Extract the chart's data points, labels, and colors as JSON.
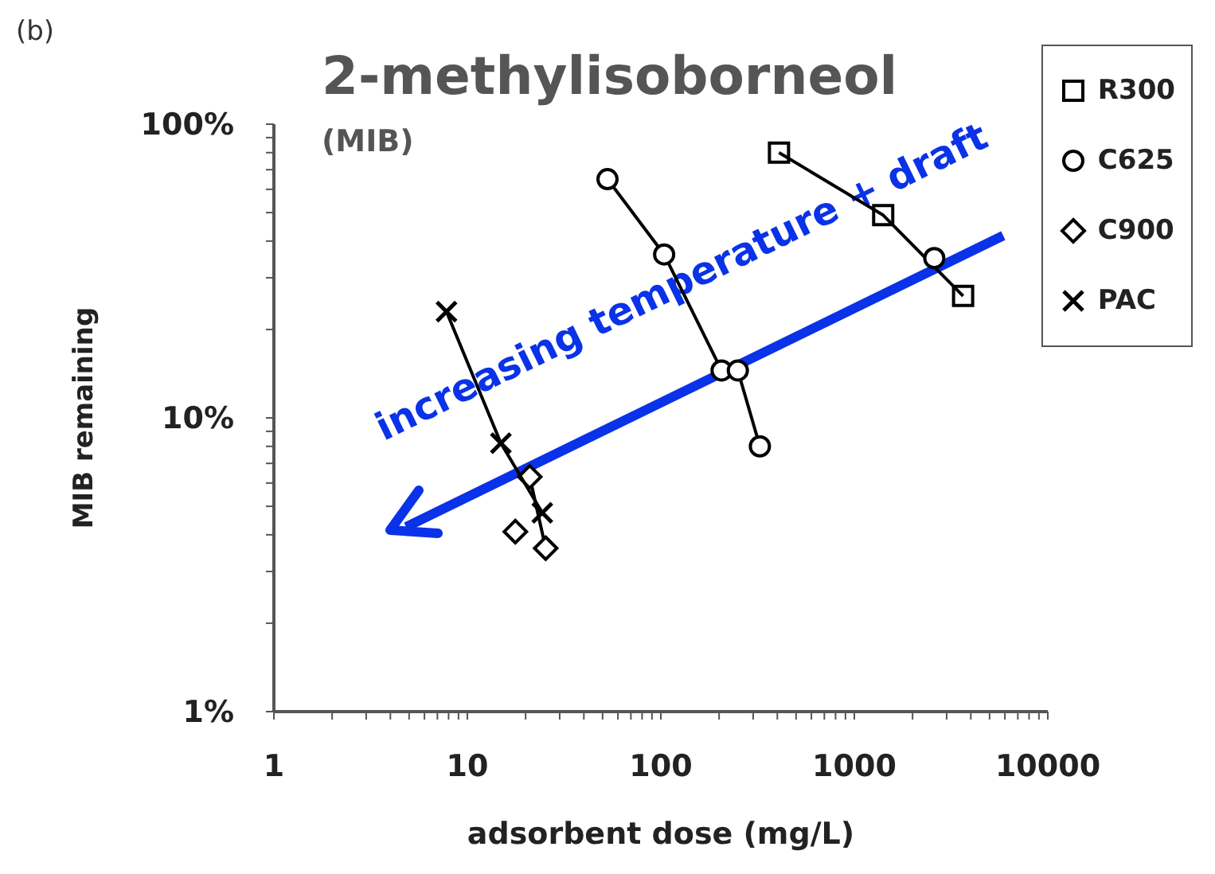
{
  "chart_data": {
    "type": "scatter",
    "title": "2-methylisoborneol",
    "subtitle": "(MIB)",
    "xlabel": "adsorbent dose (mg/L)",
    "ylabel": "MIB remaining",
    "log": "xy",
    "legend": "top right",
    "line_style": "solid",
    "xlim": [
      1,
      10000
    ],
    "ylim": [
      1,
      100
    ],
    "xticks": [
      1,
      {
        "value": 2,
        "label": null
      },
      {
        "value": 3,
        "label": null
      },
      {
        "value": 4,
        "label": null
      },
      {
        "value": 5,
        "label": null
      },
      {
        "value": 6,
        "label": null
      },
      {
        "value": 7,
        "label": null
      },
      {
        "value": 8,
        "label": null
      },
      {
        "value": 9,
        "label": null
      },
      10,
      {
        "value": 20,
        "label": null
      },
      {
        "value": 30,
        "label": null
      },
      {
        "value": 40,
        "label": null
      },
      {
        "value": 50,
        "label": null
      },
      {
        "value": 60,
        "label": null
      },
      {
        "value": 70,
        "label": null
      },
      {
        "value": 80,
        "label": null
      },
      {
        "value": 90,
        "label": null
      },
      100,
      {
        "value": 200,
        "label": null
      },
      {
        "value": 300,
        "label": null
      },
      {
        "value": 400,
        "label": null
      },
      {
        "value": 500,
        "label": null
      },
      {
        "value": 600,
        "label": null
      },
      {
        "value": 700,
        "label": null
      },
      {
        "value": 800,
        "label": null
      },
      {
        "value": 900,
        "label": null
      },
      1000,
      {
        "value": 2000,
        "label": null
      },
      {
        "value": 3000,
        "label": null
      },
      {
        "value": 4000,
        "label": null
      },
      {
        "value": 5000,
        "label": null
      },
      {
        "value": 6000,
        "label": null
      },
      {
        "value": 7000,
        "label": null
      },
      {
        "value": 8000,
        "label": null
      },
      {
        "value": 9000,
        "label": null
      },
      10000
    ],
    "yticks": [
      {
        "value": 1,
        "label": "1%"
      },
      {
        "value": 2,
        "label": null
      },
      {
        "value": 3,
        "label": null
      },
      {
        "value": 4,
        "label": null
      },
      {
        "value": 5,
        "label": null
      },
      {
        "value": 6,
        "label": null
      },
      {
        "value": 7,
        "label": null
      },
      {
        "value": 8,
        "label": null
      },
      {
        "value": 9,
        "label": null
      },
      {
        "value": 10,
        "label": "10%"
      },
      {
        "value": 20,
        "label": null
      },
      {
        "value": 30,
        "label": null
      },
      {
        "value": 40,
        "label": null
      },
      {
        "value": 50,
        "label": null
      },
      {
        "value": 60,
        "label": null
      },
      {
        "value": 70,
        "label": null
      },
      {
        "value": 80,
        "label": null
      },
      {
        "value": 90,
        "label": null
      },
      {
        "value": 100,
        "label": "100%"
      }
    ],
    "series": [
      {
        "name": "R300",
        "color": "#000000",
        "marker": "square",
        "x": [
          408,
          1410,
          3650
        ],
        "values": [
          80,
          49,
          26
        ]
      },
      {
        "name": "C625",
        "color": "#000000",
        "marker": "circle",
        "x": [
          53,
          104,
          206,
          250,
          325,
          null,
          2590
        ],
        "values": [
          65,
          36,
          14.5,
          14.5,
          8,
          null,
          35
        ]
      },
      {
        "name": "C900",
        "color": "#000000",
        "marker": "diamond",
        "x": [
          17.7,
          null,
          21,
          25.4
        ],
        "values": [
          4.1,
          null,
          6.3,
          3.6
        ]
      },
      {
        "name": "PAC",
        "color": "#000000",
        "marker": "cross",
        "x": [
          7.8,
          14.9,
          24.4
        ],
        "values": [
          23,
          8.2,
          4.75
        ]
      }
    ],
    "annotations": [
      "(b)",
      {
        "text": "increasing temperature + draft"
      }
    ]
  }
}
